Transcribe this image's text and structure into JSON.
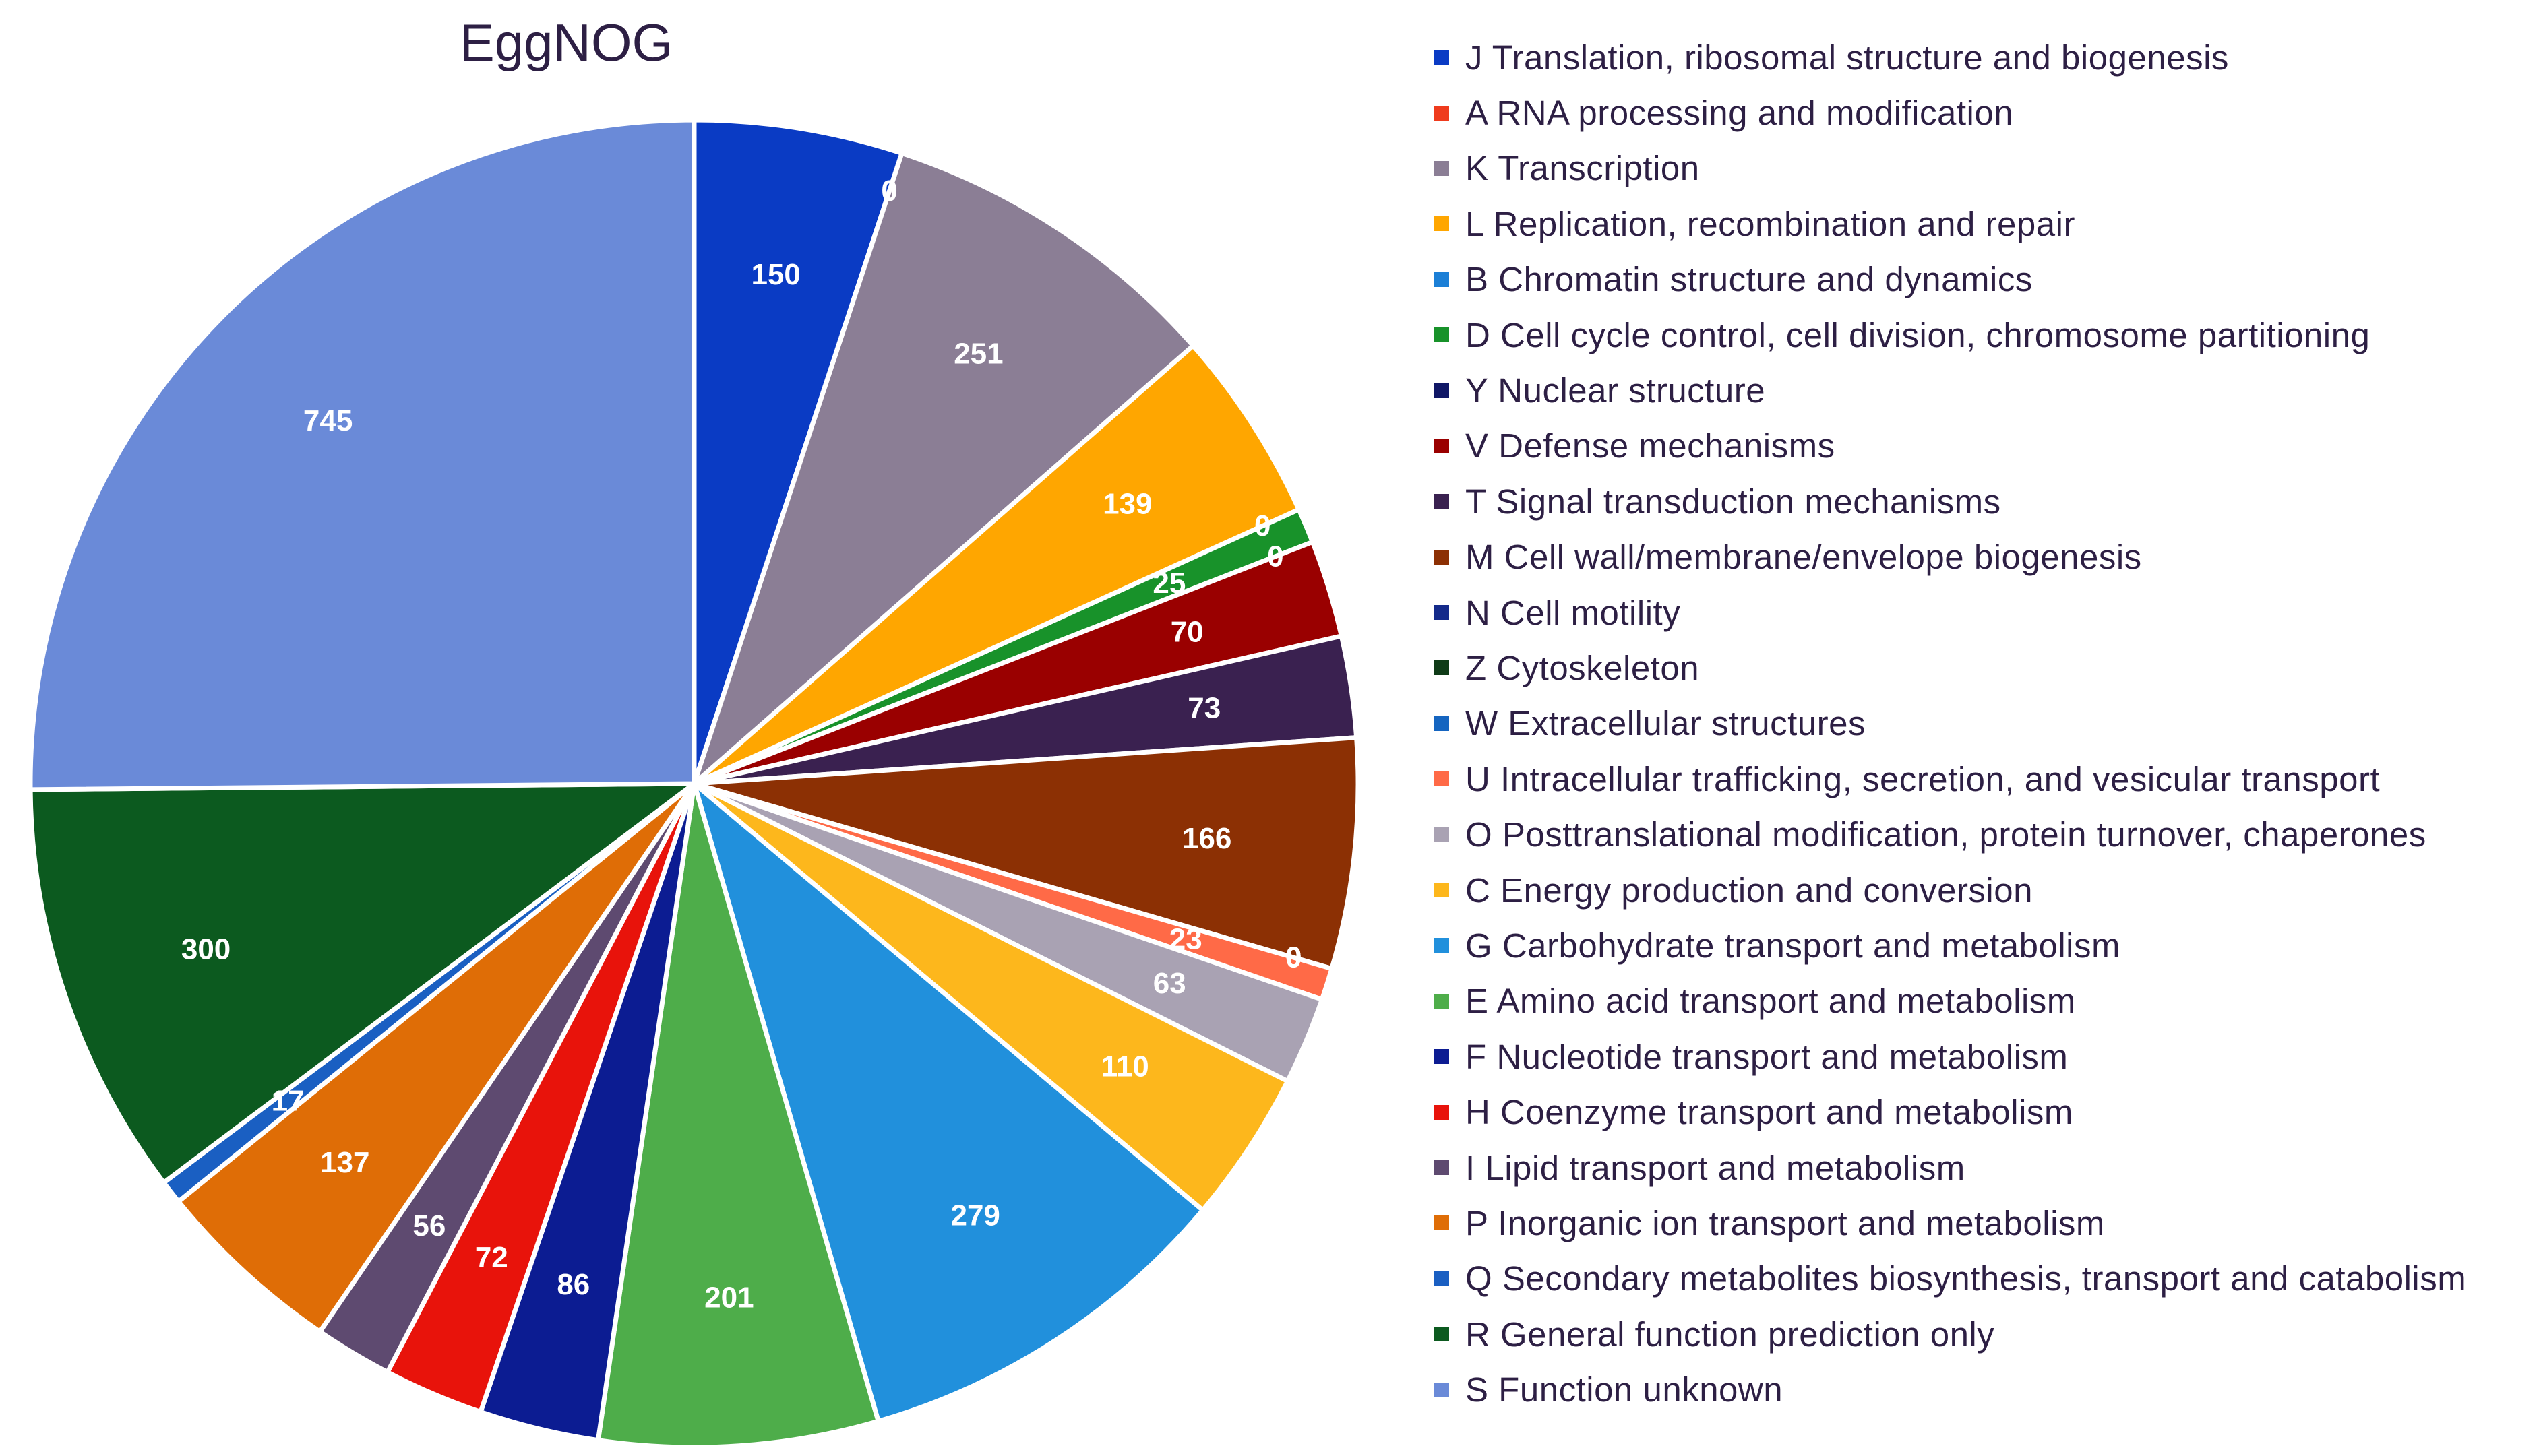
{
  "chart_data": {
    "type": "pie",
    "title": "EggNOG",
    "legend_position": "right",
    "start": "top",
    "direction": "clockwise",
    "slices": [
      {
        "code": "J",
        "label": "J Translation, ribosomal structure and biogenesis",
        "value": 150,
        "color": "#0a3bc4"
      },
      {
        "code": "A",
        "label": "A RNA processing and modification",
        "value": 0,
        "color": "#ef3b1d"
      },
      {
        "code": "K",
        "label": "K Transcription",
        "value": 251,
        "color": "#8b7e95"
      },
      {
        "code": "L",
        "label": "L Replication, recombination and repair",
        "value": 139,
        "color": "#ffa600"
      },
      {
        "code": "B",
        "label": "B Chromatin structure and dynamics",
        "value": 0,
        "color": "#1b7fd6"
      },
      {
        "code": "D",
        "label": "D Cell cycle control, cell division, chromosome partitioning",
        "value": 25,
        "color": "#18922a"
      },
      {
        "code": "Y",
        "label": "Y Nuclear structure",
        "value": 0,
        "color": "#101766"
      },
      {
        "code": "V",
        "label": "V Defense mechanisms",
        "value": 70,
        "color": "#9a0000"
      },
      {
        "code": "T",
        "label": "T Signal transduction mechanisms",
        "value": 73,
        "color": "#3a2150"
      },
      {
        "code": "M",
        "label": "M Cell wall/membrane/envelope biogenesis",
        "value": 166,
        "color": "#8c3004"
      },
      {
        "code": "N",
        "label": "N Cell motility",
        "value": 0,
        "color": "#142a8a"
      },
      {
        "code": "Z",
        "label": "Z Cytoskeleton",
        "value": 0,
        "color": "#0f3b17"
      },
      {
        "code": "W",
        "label": "W Extracellular structures",
        "value": 0,
        "color": "#1565c0"
      },
      {
        "code": "U",
        "label": "U Intracellular trafficking, secretion, and vesicular transport",
        "value": 23,
        "color": "#ff6a47"
      },
      {
        "code": "O",
        "label": "O Posttranslational modification, protein turnover, chaperones",
        "value": 63,
        "color": "#a9a2b3"
      },
      {
        "code": "C",
        "label": "C Energy production and conversion",
        "value": 110,
        "color": "#fdb71c"
      },
      {
        "code": "G",
        "label": "G Carbohydrate transport and metabolism",
        "value": 279,
        "color": "#2190dc"
      },
      {
        "code": "E",
        "label": "E Amino acid transport and metabolism",
        "value": 201,
        "color": "#4ead4a"
      },
      {
        "code": "F",
        "label": "F Nucleotide transport and metabolism",
        "value": 86,
        "color": "#0c1c92"
      },
      {
        "code": "H",
        "label": "H Coenzyme transport and metabolism",
        "value": 72,
        "color": "#e8130b"
      },
      {
        "code": "I",
        "label": "I Lipid transport and metabolism",
        "value": 56,
        "color": "#5e4a70"
      },
      {
        "code": "P",
        "label": "P Inorganic ion transport and metabolism",
        "value": 137,
        "color": "#df6d06"
      },
      {
        "code": "Q",
        "label": "Q Secondary metabolites biosynthesis, transport and catabolism",
        "value": 17,
        "color": "#1a5fc2"
      },
      {
        "code": "R",
        "label": "R General function prediction only",
        "value": 300,
        "color": "#0c5a1f"
      },
      {
        "code": "S",
        "label": "S Function unknown",
        "value": 745,
        "color": "#6a8ad8"
      }
    ]
  }
}
